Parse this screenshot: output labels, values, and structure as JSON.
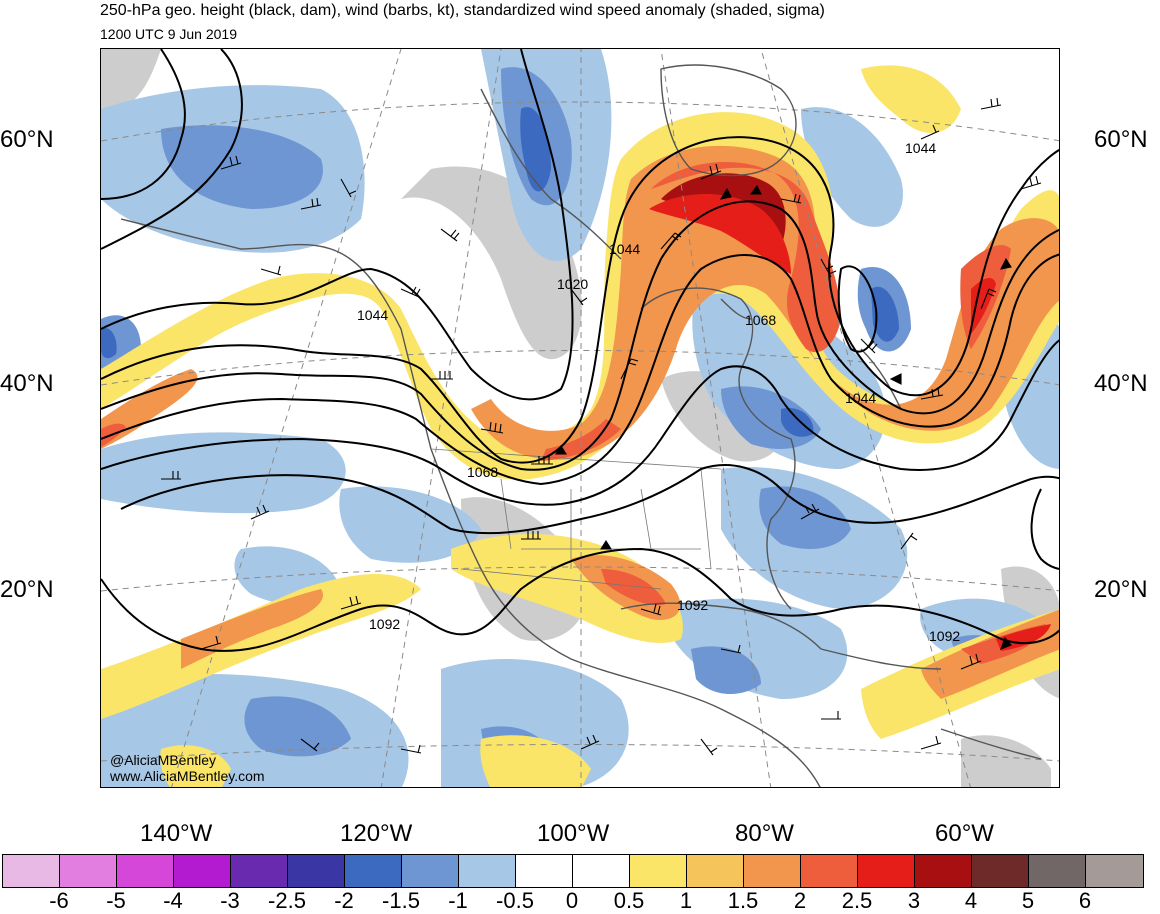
{
  "header": {
    "title": "250-hPa geo. height (black, dam), wind (barbs, kt), standardized wind speed anomaly (shaded, sigma)",
    "valid_time": "1200 UTC 9 Jun 2019"
  },
  "map": {
    "lat_labels_left": [
      "60°N",
      "40°N",
      "20°N"
    ],
    "lat_labels_right": [
      "60°N",
      "40°N",
      "20°N"
    ],
    "lon_labels": [
      "140°W",
      "120°W",
      "100°W",
      "80°W",
      "60°W"
    ],
    "contour_labels": [
      "1020",
      "1044",
      "1044",
      "1044",
      "1044",
      "1068",
      "1068",
      "1092",
      "1092",
      "1092"
    ],
    "credit_handle": "@AliciaMBentley",
    "credit_site": "www.AliciaMBentley.com"
  },
  "colorbar": {
    "ticks": [
      "-6",
      "-5",
      "-4",
      "-3",
      "-2.5",
      "-2",
      "-1.5",
      "-1",
      "-0.5",
      "0",
      "0.5",
      "1",
      "1.5",
      "2",
      "2.5",
      "3",
      "4",
      "5",
      "6"
    ],
    "colors": [
      "#e9b9e6",
      "#e27ee0",
      "#d447d8",
      "#b21bd0",
      "#6a2ab0",
      "#3a37a5",
      "#3c6ac0",
      "#6e96d2",
      "#a7c7e6",
      "#ffffff",
      "#ffffff",
      "#fae569",
      "#f5c55c",
      "#f2954d",
      "#ee5d3c",
      "#e51e19",
      "#a80f10",
      "#6e2a28",
      "#726767",
      "#a49a98"
    ]
  },
  "colors": {
    "land_gray": "#c8c8c8",
    "coast": "#555555",
    "contour": "#000000"
  }
}
